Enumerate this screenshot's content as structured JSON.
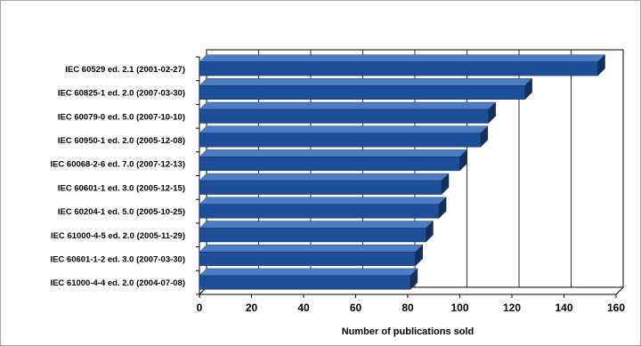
{
  "chart_data": {
    "type": "bar",
    "orientation": "horizontal",
    "style": "3d",
    "title": "",
    "xlabel": "Number of publications sold",
    "ylabel": "",
    "xlim": [
      0,
      160
    ],
    "x_ticks": [
      "0",
      "20",
      "40",
      "60",
      "80",
      "100",
      "120",
      "140",
      "160"
    ],
    "grid": true,
    "legend": "none",
    "bar_color": "#1f4e98",
    "bar_top_color": "#4d7cc6",
    "bar_side_color": "#122f5e",
    "categories": [
      "IEC 60529 ed. 2.1 (2001-02-27)",
      "IEC 60825-1 ed. 2.0 (2007-03-30)",
      "IEC 60079-0 ed. 5.0 (2007-10-10)",
      "IEC 60950-1 ed. 2.0 (2005-12-08)",
      "IEC 60068-2-6 ed. 7.0 (2007-12-13)",
      "IEC 60601-1 ed. 3.0 (2005-12-15)",
      "IEC 60204-1 ed. 5.0 (2005-10-25)",
      "IEC 61000-4-5 ed. 2.0 (2005-11-29)",
      "IEC 60601-1-2 ed. 3.0 (2007-03-30)",
      "IEC 61000-4-4 ed. 2.0 (2004-07-08)"
    ],
    "values": [
      153,
      125,
      111,
      108,
      100,
      93,
      92,
      87,
      83,
      81
    ]
  }
}
